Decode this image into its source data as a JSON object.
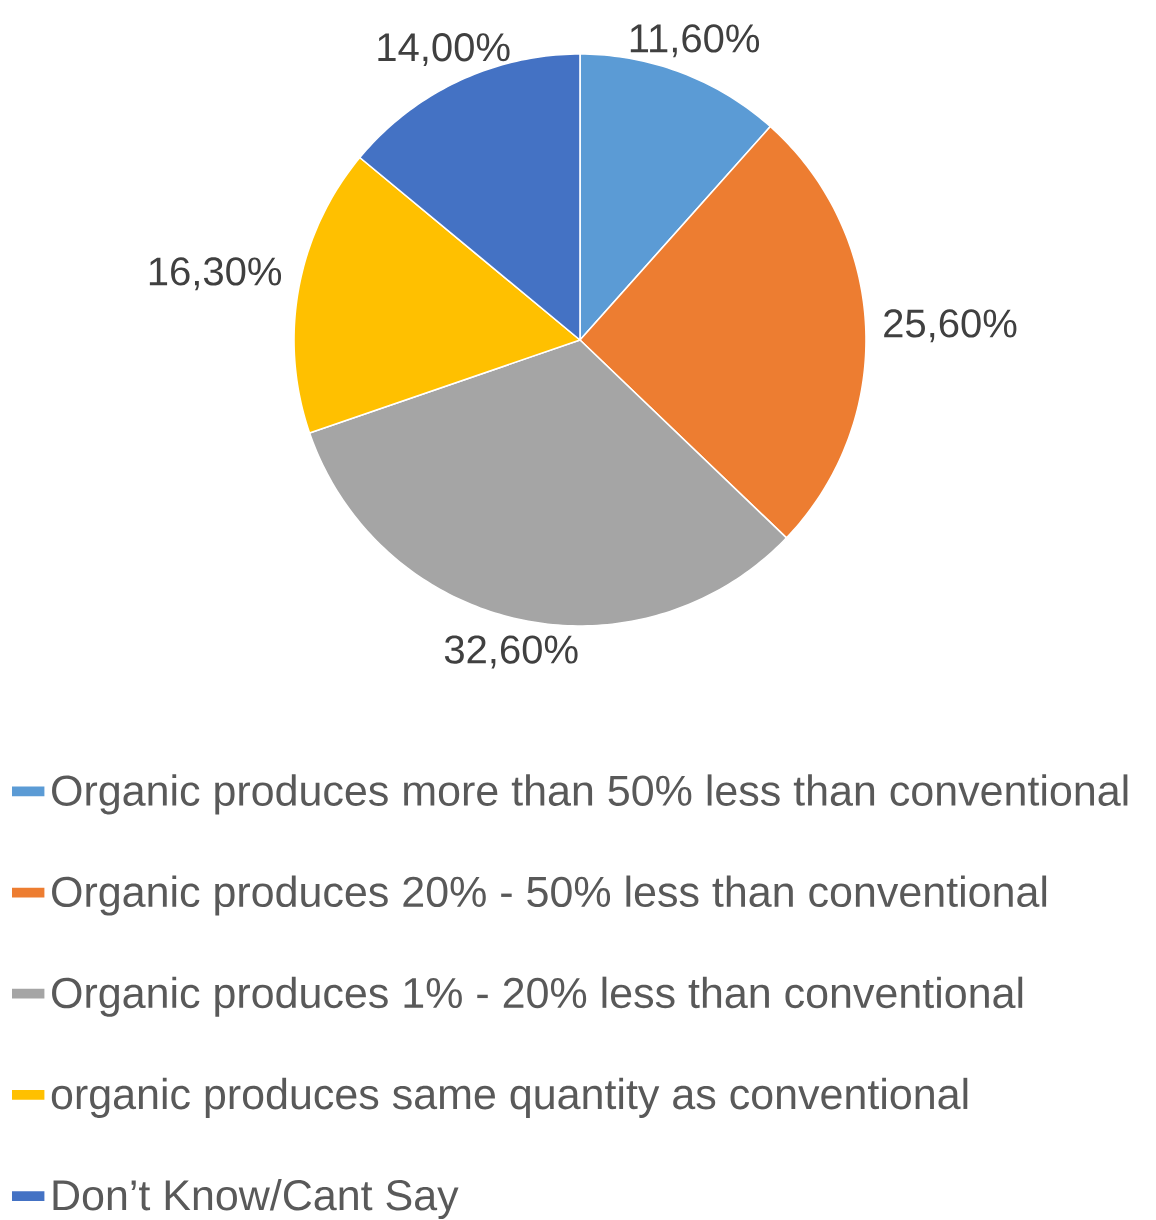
{
  "chart_data": {
    "type": "pie",
    "categories": [
      "Organic produces more than 50% less than conventional",
      "Organic produces 20% - 50% less than conventional",
      "Organic produces 1% - 20% less than conventional",
      "organic produces same quantity as conventional",
      "Don’t Know/Cant Say"
    ],
    "values": [
      11.6,
      25.6,
      32.6,
      16.3,
      14.0
    ],
    "colors": [
      "#5b9bd5",
      "#ed7d31",
      "#a5a5a5",
      "#ffc000",
      "#4472c4"
    ],
    "value_labels": [
      "11,60%",
      "25,60%",
      "32,60%",
      "16,30%",
      "14,00%"
    ],
    "legend": "bottom"
  }
}
